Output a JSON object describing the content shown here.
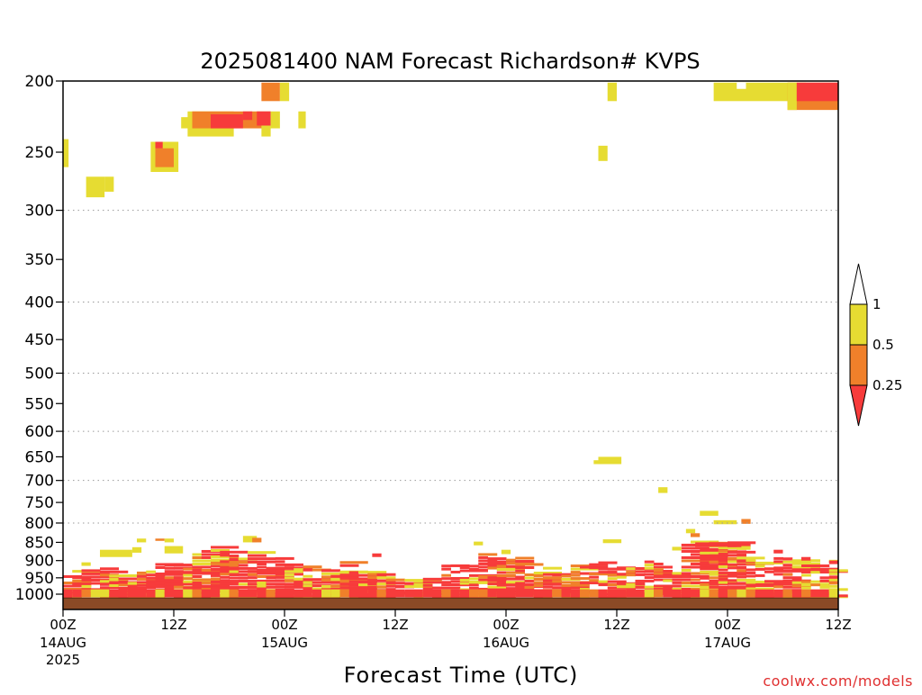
{
  "chart_data": {
    "type": "heatmap",
    "title": "2025081400 NAM Forecast Richardson# KVPS",
    "xlabel": "Forecast Time (UTC)",
    "ylabel": "",
    "credit": "coolwx.com/models",
    "y_axis": {
      "scale": "log-pressure",
      "inverted": true,
      "ylim": [
        1050,
        200
      ],
      "ticks": [
        "200",
        "250",
        "300",
        "350",
        "400",
        "450",
        "500",
        "550",
        "600",
        "650",
        "700",
        "750",
        "800",
        "850",
        "900",
        "950",
        "1000"
      ]
    },
    "x_axis": {
      "xlim": [
        0,
        84
      ],
      "unit": "forecast hour",
      "ticks": [
        {
          "h": 0,
          "label": "00Z",
          "sub": "14AUG",
          "sub2": "2025"
        },
        {
          "h": 12,
          "label": "12Z",
          "sub": "",
          "sub2": ""
        },
        {
          "h": 24,
          "label": "00Z",
          "sub": "15AUG",
          "sub2": ""
        },
        {
          "h": 36,
          "label": "12Z",
          "sub": "",
          "sub2": ""
        },
        {
          "h": 48,
          "label": "00Z",
          "sub": "16AUG",
          "sub2": ""
        },
        {
          "h": 60,
          "label": "12Z",
          "sub": "",
          "sub2": ""
        },
        {
          "h": 72,
          "label": "00Z",
          "sub": "17AUG",
          "sub2": ""
        },
        {
          "h": 84,
          "label": "12Z",
          "sub": "",
          "sub2": ""
        }
      ]
    },
    "grid": "dotted horizontal lines at 300, 400, 500, 600, 700, 800 hPa",
    "colorbar": {
      "placement": "right",
      "levels": [
        "0.25",
        "0.5",
        "1"
      ],
      "bins": [
        {
          "range": "< 0.25",
          "color": "#f73b3b"
        },
        {
          "range": "0.25 - 0.5",
          "color": "#f0802a"
        },
        {
          "range": "0.5 - 1",
          "color": "#e6dc32"
        },
        {
          "range": "> 1",
          "color": "#ffffff"
        }
      ]
    },
    "ground_color": "#8b4a26",
    "upper_cells": [
      {
        "t0": 0,
        "t1": 0.6,
        "p_top": 240,
        "p_bot": 262,
        "c": "#e6dc32"
      },
      {
        "t0": 2.5,
        "t1": 4.5,
        "p_top": 270,
        "p_bot": 288,
        "c": "#e6dc32"
      },
      {
        "t0": 4.5,
        "t1": 5.5,
        "p_top": 270,
        "p_bot": 283,
        "c": "#e6dc32"
      },
      {
        "t0": 9.5,
        "t1": 12.5,
        "p_top": 242,
        "p_bot": 266,
        "c": "#e6dc32"
      },
      {
        "t0": 10,
        "t1": 12,
        "p_top": 247,
        "p_bot": 262,
        "c": "#f0802a"
      },
      {
        "t0": 10,
        "t1": 10.8,
        "p_top": 242,
        "p_bot": 247,
        "c": "#f73b3b"
      },
      {
        "t0": 12.8,
        "t1": 14,
        "p_top": 224,
        "p_bot": 232,
        "c": "#e6dc32"
      },
      {
        "t0": 13.5,
        "t1": 18.5,
        "p_top": 220,
        "p_bot": 238,
        "c": "#e6dc32"
      },
      {
        "t0": 14,
        "t1": 22.5,
        "p_top": 220,
        "p_bot": 232,
        "c": "#f0802a"
      },
      {
        "t0": 16,
        "t1": 19.5,
        "p_top": 222,
        "p_bot": 232,
        "c": "#f73b3b"
      },
      {
        "t0": 19.5,
        "t1": 20.5,
        "p_top": 220,
        "p_bot": 226,
        "c": "#f73b3b"
      },
      {
        "t0": 21,
        "t1": 22.5,
        "p_top": 220,
        "p_bot": 230,
        "c": "#f73b3b"
      },
      {
        "t0": 21.5,
        "t1": 22.5,
        "p_top": 230,
        "p_bot": 238,
        "c": "#e6dc32"
      },
      {
        "t0": 22.5,
        "t1": 23.5,
        "p_top": 220,
        "p_bot": 232,
        "c": "#e6dc32"
      },
      {
        "t0": 21.5,
        "t1": 23.5,
        "p_top": 201,
        "p_bot": 213,
        "c": "#f0802a"
      },
      {
        "t0": 23.5,
        "t1": 24.5,
        "p_top": 201,
        "p_bot": 213,
        "c": "#e6dc32"
      },
      {
        "t0": 25.5,
        "t1": 26.3,
        "p_top": 220,
        "p_bot": 232,
        "c": "#e6dc32"
      },
      {
        "t0": 59,
        "t1": 60,
        "p_top": 201,
        "p_bot": 213,
        "c": "#e6dc32"
      },
      {
        "t0": 58,
        "t1": 59,
        "p_top": 245,
        "p_bot": 257,
        "c": "#e6dc32"
      },
      {
        "t0": 58,
        "t1": 60.5,
        "p_top": 650,
        "p_bot": 665,
        "c": "#e6dc32"
      },
      {
        "t0": 57.5,
        "t1": 58.5,
        "p_top": 657,
        "p_bot": 665,
        "c": "#e6dc32"
      },
      {
        "t0": 64.5,
        "t1": 65.5,
        "p_top": 715,
        "p_bot": 728,
        "c": "#e6dc32"
      },
      {
        "t0": 69,
        "t1": 71,
        "p_top": 770,
        "p_bot": 782,
        "c": "#e6dc32"
      },
      {
        "t0": 70.5,
        "t1": 73,
        "p_top": 793,
        "p_bot": 803,
        "c": "#e6dc32"
      },
      {
        "t0": 73.5,
        "t1": 74.5,
        "p_top": 790,
        "p_bot": 802,
        "c": "#f0802a"
      },
      {
        "t0": 70.5,
        "t1": 80.5,
        "p_top": 201,
        "p_bot": 213,
        "c": "#e6dc32"
      },
      {
        "t0": 73,
        "t1": 74,
        "p_top": 201,
        "p_bot": 205,
        "c": "#ffffff"
      },
      {
        "t0": 78.5,
        "t1": 84,
        "p_top": 201,
        "p_bot": 219,
        "c": "#f0802a"
      },
      {
        "t0": 78.5,
        "t1": 79.5,
        "p_top": 201,
        "p_bot": 219,
        "c": "#e6dc32"
      },
      {
        "t0": 79.5,
        "t1": 84,
        "p_top": 201,
        "p_bot": 213,
        "c": "#f73b3b"
      }
    ],
    "boundary_layer": [
      {
        "t0": 0,
        "t1": 4,
        "p_top": 930,
        "p_bot": 1010,
        "mix": "heavy"
      },
      {
        "t0": 4,
        "t1": 8,
        "p_top": 920,
        "p_bot": 1010,
        "mix": "moderate"
      },
      {
        "t0": 8,
        "t1": 14,
        "p_top": 910,
        "p_bot": 1010,
        "mix": "heavy"
      },
      {
        "t0": 14,
        "t1": 21,
        "p_top": 870,
        "p_bot": 1010,
        "mix": "heavy"
      },
      {
        "t0": 21,
        "t1": 26,
        "p_top": 900,
        "p_bot": 1010,
        "mix": "heavy"
      },
      {
        "t0": 26,
        "t1": 32,
        "p_top": 910,
        "p_bot": 1010,
        "mix": "orange"
      },
      {
        "t0": 32,
        "t1": 36,
        "p_top": 930,
        "p_bot": 1010,
        "mix": "moderate"
      },
      {
        "t0": 36,
        "t1": 41,
        "p_top": 960,
        "p_bot": 1010,
        "mix": "light"
      },
      {
        "t0": 41,
        "t1": 45,
        "p_top": 890,
        "p_bot": 1010,
        "mix": "moderate"
      },
      {
        "t0": 45,
        "t1": 50,
        "p_top": 880,
        "p_bot": 1010,
        "mix": "heavy"
      },
      {
        "t0": 50,
        "t1": 56,
        "p_top": 920,
        "p_bot": 1010,
        "mix": "orange"
      },
      {
        "t0": 56,
        "t1": 62,
        "p_top": 910,
        "p_bot": 1010,
        "mix": "moderate"
      },
      {
        "t0": 62,
        "t1": 67,
        "p_top": 900,
        "p_bot": 1010,
        "mix": "moderate"
      },
      {
        "t0": 67,
        "t1": 74,
        "p_top": 850,
        "p_bot": 1010,
        "mix": "heavy"
      },
      {
        "t0": 74,
        "t1": 79,
        "p_top": 890,
        "p_bot": 1010,
        "mix": "moderate"
      },
      {
        "t0": 79,
        "t1": 84,
        "p_top": 900,
        "p_bot": 1010,
        "mix": "light"
      }
    ],
    "extra_low_cells": [
      {
        "t0": 2,
        "t1": 3,
        "p_top": 905,
        "p_bot": 915,
        "c": "#e6dc32"
      },
      {
        "t0": 4,
        "t1": 7.5,
        "p_top": 870,
        "p_bot": 890,
        "c": "#e6dc32"
      },
      {
        "t0": 7.5,
        "t1": 8.5,
        "p_top": 863,
        "p_bot": 878,
        "c": "#e6dc32"
      },
      {
        "t0": 8,
        "t1": 9,
        "p_top": 840,
        "p_bot": 850,
        "c": "#e6dc32"
      },
      {
        "t0": 10,
        "t1": 11,
        "p_top": 840,
        "p_bot": 846,
        "c": "#f0802a"
      },
      {
        "t0": 11,
        "t1": 12,
        "p_top": 840,
        "p_bot": 850,
        "c": "#e6dc32"
      },
      {
        "t0": 11,
        "t1": 13,
        "p_top": 860,
        "p_bot": 880,
        "c": "#e6dc32"
      },
      {
        "t0": 19.5,
        "t1": 21,
        "p_top": 833,
        "p_bot": 850,
        "c": "#e6dc32"
      },
      {
        "t0": 20.5,
        "t1": 21.5,
        "p_top": 838,
        "p_bot": 850,
        "c": "#f0802a"
      },
      {
        "t0": 33.5,
        "t1": 34.5,
        "p_top": 880,
        "p_bot": 890,
        "c": "#f73b3b"
      },
      {
        "t0": 44.5,
        "t1": 45.5,
        "p_top": 848,
        "p_bot": 858,
        "c": "#e6dc32"
      },
      {
        "t0": 47.5,
        "t1": 48.5,
        "p_top": 870,
        "p_bot": 882,
        "c": "#e6dc32"
      },
      {
        "t0": 58.5,
        "t1": 60.5,
        "p_top": 842,
        "p_bot": 852,
        "c": "#e6dc32"
      },
      {
        "t0": 66,
        "t1": 67,
        "p_top": 862,
        "p_bot": 872,
        "c": "#e6dc32"
      },
      {
        "t0": 67.5,
        "t1": 68.5,
        "p_top": 815,
        "p_bot": 826,
        "c": "#e6dc32"
      },
      {
        "t0": 68,
        "t1": 69,
        "p_top": 826,
        "p_bot": 836,
        "c": "#f0802a"
      },
      {
        "t0": 68.5,
        "t1": 74.5,
        "p_top": 850,
        "p_bot": 862,
        "c": "#f73b3b"
      },
      {
        "t0": 73.5,
        "t1": 74.5,
        "p_top": 860,
        "p_bot": 870,
        "c": "#e6dc32"
      },
      {
        "t0": 77,
        "t1": 78,
        "p_top": 870,
        "p_bot": 880,
        "c": "#f73b3b"
      },
      {
        "t0": 80,
        "t1": 81,
        "p_top": 890,
        "p_bot": 900,
        "c": "#f73b3b"
      },
      {
        "t0": 83,
        "t1": 84,
        "p_top": 900,
        "p_bot": 910,
        "c": "#f73b3b"
      }
    ]
  }
}
